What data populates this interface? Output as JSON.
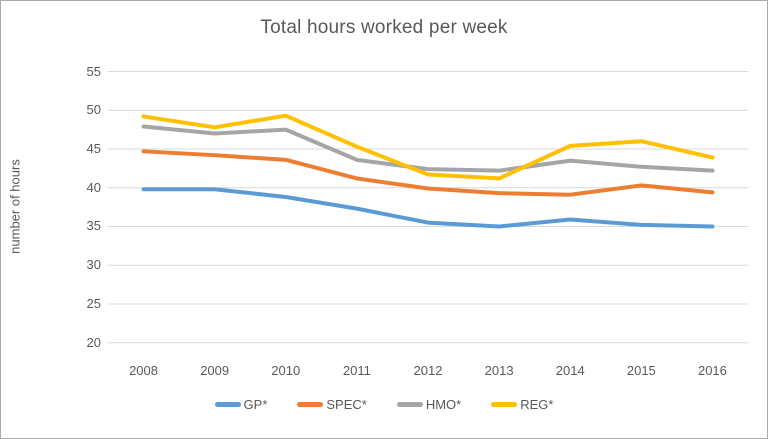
{
  "window": {
    "background_color": "#ffffff",
    "border_color": "#ababab"
  },
  "chart_data": {
    "type": "line",
    "title": "Total hours worked per week",
    "xlabel": "",
    "ylabel": "number of hours",
    "categories": [
      "2008",
      "2009",
      "2010",
      "2011",
      "2012",
      "2013",
      "2014",
      "2015",
      "2016"
    ],
    "series": [
      {
        "name": "GP*",
        "color": "#5B9BD5",
        "values": [
          39.8,
          39.8,
          38.8,
          37.3,
          35.5,
          35.0,
          35.9,
          35.2,
          35.0
        ]
      },
      {
        "name": "SPEC*",
        "color": "#ED7D31",
        "values": [
          44.7,
          44.2,
          43.6,
          41.2,
          39.9,
          39.3,
          39.1,
          40.3,
          39.4
        ]
      },
      {
        "name": "HMO*",
        "color": "#A5A5A5",
        "values": [
          47.9,
          47.0,
          47.5,
          43.6,
          42.4,
          42.2,
          43.5,
          42.7,
          42.2
        ]
      },
      {
        "name": "REG*",
        "color": "#FFC000",
        "values": [
          49.2,
          47.8,
          49.3,
          45.3,
          41.7,
          41.2,
          45.4,
          46.0,
          43.9
        ]
      }
    ],
    "ylim": [
      20,
      55
    ],
    "y_ticks": [
      55,
      50,
      45,
      40,
      35,
      30,
      25,
      20
    ],
    "grid": true,
    "gridline_color": "#D9D9D9",
    "text_color": "#595959",
    "legend_position": "bottom",
    "legend": [
      "GP*",
      "SPEC*",
      "HMO*",
      "REG*"
    ]
  }
}
